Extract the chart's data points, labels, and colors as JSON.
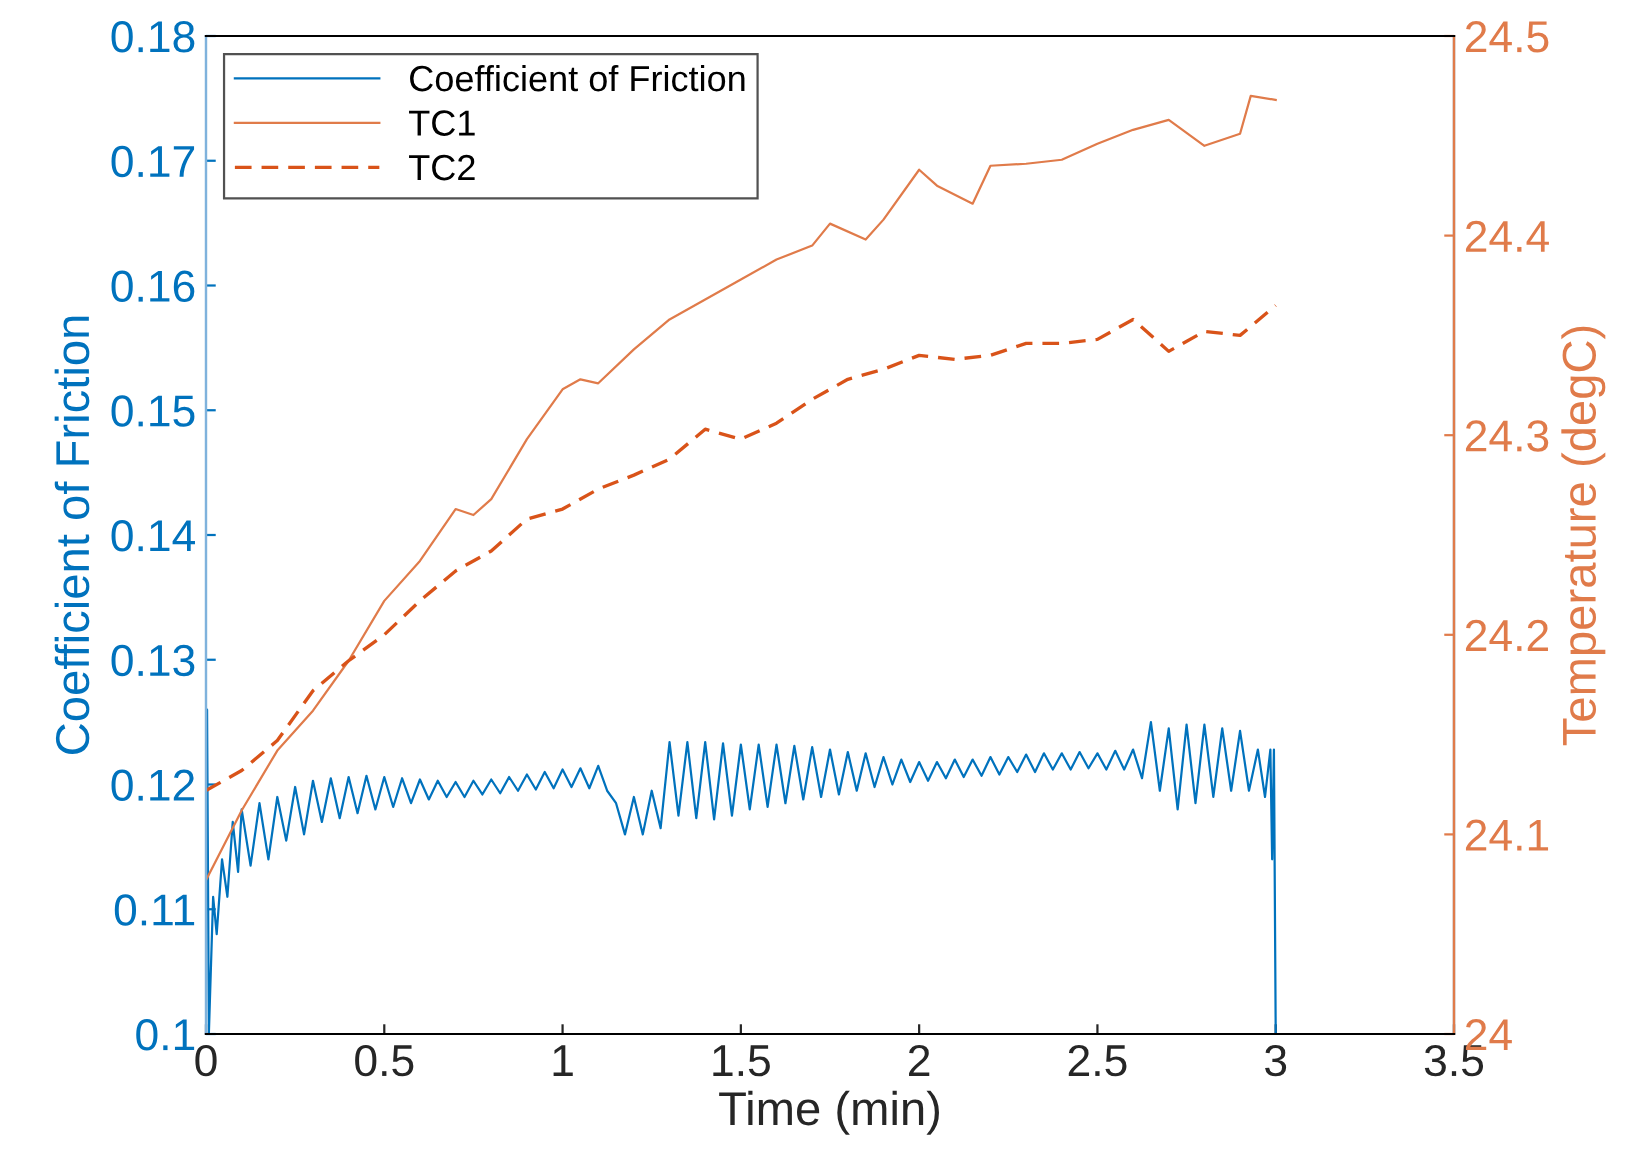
{
  "chart_data": {
    "type": "line",
    "xlabel": "Time (min)",
    "ylabel": "Coefficient of Friction",
    "y2label": "Temperature (degC)",
    "xlim": [
      0,
      3.5
    ],
    "xticks": [
      0,
      0.5,
      1,
      1.5,
      2,
      2.5,
      3,
      3.5
    ],
    "ylim": [
      0.1,
      0.18
    ],
    "yticks": [
      0.1,
      0.11,
      0.12,
      0.13,
      0.14,
      0.15,
      0.16,
      0.17,
      0.18
    ],
    "y2lim": [
      24,
      24.5
    ],
    "y2ticks": [
      24,
      24.1,
      24.2,
      24.3,
      24.4,
      24.5
    ],
    "grid": false,
    "legend": "top left",
    "marker": "none",
    "series": [
      {
        "name": "Coefficient of Friction",
        "color": "#0072bd",
        "line_style": "solid",
        "x": [
          0,
          0.003,
          0.008,
          0.02,
          0.03,
          0.045,
          0.06,
          0.075,
          0.09,
          0.1,
          0.125,
          0.15,
          0.175,
          0.2,
          0.225,
          0.25,
          0.275,
          0.3,
          0.325,
          0.35,
          0.375,
          0.4,
          0.425,
          0.45,
          0.475,
          0.5,
          0.525,
          0.55,
          0.575,
          0.6,
          0.625,
          0.65,
          0.675,
          0.7,
          0.725,
          0.75,
          0.775,
          0.8,
          0.825,
          0.85,
          0.875,
          0.9,
          0.925,
          0.95,
          0.975,
          1.0,
          1.025,
          1.05,
          1.075,
          1.1,
          1.125,
          1.15,
          1.175,
          1.2,
          1.225,
          1.25,
          1.275,
          1.3,
          1.325,
          1.35,
          1.375,
          1.4,
          1.425,
          1.45,
          1.475,
          1.5,
          1.525,
          1.55,
          1.575,
          1.6,
          1.625,
          1.65,
          1.675,
          1.7,
          1.725,
          1.75,
          1.775,
          1.8,
          1.825,
          1.85,
          1.875,
          1.9,
          1.925,
          1.95,
          1.975,
          2.0,
          2.025,
          2.05,
          2.075,
          2.1,
          2.125,
          2.15,
          2.175,
          2.2,
          2.225,
          2.25,
          2.275,
          2.3,
          2.325,
          2.35,
          2.375,
          2.4,
          2.425,
          2.45,
          2.475,
          2.5,
          2.525,
          2.55,
          2.575,
          2.6,
          2.625,
          2.65,
          2.675,
          2.7,
          2.725,
          2.75,
          2.775,
          2.8,
          2.825,
          2.85,
          2.875,
          2.9,
          2.925,
          2.95,
          2.97,
          2.985,
          2.99,
          2.995,
          3.0
        ],
        "values": [
          0.12,
          0.126,
          0.1,
          0.111,
          0.108,
          0.114,
          0.111,
          0.117,
          0.113,
          0.118,
          0.1135,
          0.1185,
          0.114,
          0.119,
          0.1155,
          0.1198,
          0.116,
          0.1203,
          0.117,
          0.1205,
          0.1173,
          0.1206,
          0.1177,
          0.1207,
          0.118,
          0.1206,
          0.1182,
          0.1205,
          0.1185,
          0.1204,
          0.1188,
          0.1203,
          0.119,
          0.1202,
          0.119,
          0.1203,
          0.1192,
          0.1204,
          0.1193,
          0.1206,
          0.1195,
          0.1208,
          0.1196,
          0.121,
          0.1197,
          0.1212,
          0.1198,
          0.1213,
          0.1197,
          0.1215,
          0.1195,
          0.1185,
          0.116,
          0.119,
          0.116,
          0.1195,
          0.1165,
          0.1234,
          0.1175,
          0.1234,
          0.1173,
          0.1234,
          0.1172,
          0.1233,
          0.1175,
          0.1232,
          0.118,
          0.1232,
          0.1182,
          0.1232,
          0.1185,
          0.1231,
          0.1188,
          0.123,
          0.119,
          0.1228,
          0.1192,
          0.1226,
          0.1195,
          0.1225,
          0.1198,
          0.1222,
          0.12,
          0.122,
          0.1202,
          0.1218,
          0.1203,
          0.1218,
          0.1205,
          0.122,
          0.1206,
          0.122,
          0.1207,
          0.1222,
          0.1208,
          0.1222,
          0.121,
          0.1224,
          0.121,
          0.1225,
          0.1212,
          0.1225,
          0.1212,
          0.1226,
          0.1213,
          0.1225,
          0.1212,
          0.1227,
          0.1212,
          0.1228,
          0.1205,
          0.125,
          0.1195,
          0.1245,
          0.118,
          0.1248,
          0.1185,
          0.1248,
          0.119,
          0.1245,
          0.1195,
          0.1243,
          0.1195,
          0.1228,
          0.119,
          0.1228,
          0.114,
          0.1228,
          0.1
        ]
      },
      {
        "name": "TC1",
        "color": "#e07b4a",
        "line_style": "solid",
        "axis": "y2",
        "x": [
          0,
          0.1,
          0.2,
          0.3,
          0.4,
          0.5,
          0.6,
          0.7,
          0.75,
          0.8,
          0.9,
          1.0,
          1.05,
          1.1,
          1.2,
          1.3,
          1.4,
          1.5,
          1.6,
          1.7,
          1.75,
          1.85,
          1.9,
          2.0,
          2.05,
          2.15,
          2.2,
          2.3,
          2.4,
          2.5,
          2.6,
          2.7,
          2.8,
          2.9,
          2.93,
          3.0
        ],
        "values": [
          24.077,
          24.112,
          24.142,
          24.162,
          24.187,
          24.217,
          24.237,
          24.263,
          24.26,
          24.268,
          24.298,
          24.323,
          24.328,
          24.326,
          24.343,
          24.358,
          24.368,
          24.378,
          24.388,
          24.395,
          24.406,
          24.398,
          24.408,
          24.433,
          24.425,
          24.416,
          24.435,
          24.436,
          24.438,
          24.446,
          24.453,
          24.458,
          24.445,
          24.451,
          24.47,
          24.468
        ]
      },
      {
        "name": "TC2",
        "color": "#d95319",
        "line_style": "dashed",
        "axis": "y2",
        "x": [
          0,
          0.1,
          0.2,
          0.3,
          0.4,
          0.5,
          0.6,
          0.7,
          0.8,
          0.9,
          1.0,
          1.1,
          1.2,
          1.3,
          1.4,
          1.5,
          1.6,
          1.7,
          1.8,
          1.9,
          2.0,
          2.1,
          2.2,
          2.3,
          2.4,
          2.5,
          2.6,
          2.7,
          2.8,
          2.9,
          3.0
        ],
        "values": [
          24.122,
          24.132,
          24.147,
          24.172,
          24.187,
          24.2,
          24.217,
          24.232,
          24.242,
          24.258,
          24.263,
          24.273,
          24.28,
          24.288,
          24.303,
          24.298,
          24.306,
          24.318,
          24.328,
          24.333,
          24.34,
          24.338,
          24.34,
          24.346,
          24.346,
          24.348,
          24.358,
          24.342,
          24.352,
          24.35,
          24.365
        ]
      }
    ]
  }
}
